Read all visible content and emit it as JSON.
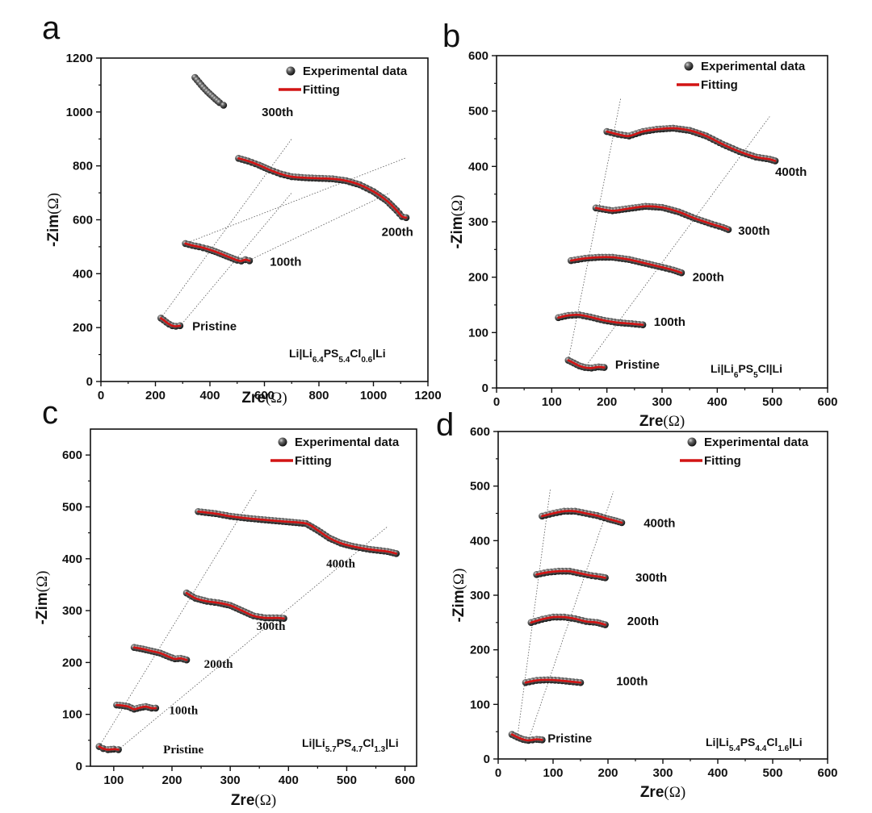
{
  "chart_data": [
    {
      "panel": "a",
      "type": "scatter",
      "xlabel": "Zre",
      "ylabel": "-Zim",
      "unit": "(Ω)",
      "xlim": [
        0,
        1200
      ],
      "ylim": [
        0,
        1200
      ],
      "xticks": [
        0,
        200,
        400,
        600,
        800,
        1000,
        1200
      ],
      "yticks": [
        0,
        200,
        400,
        600,
        800,
        1000,
        1200
      ],
      "legend": {
        "experimental": "Experimental data",
        "fitting": "Fitting",
        "position": "top-right"
      },
      "cell": {
        "prefix": "Li|Li",
        "s1": "6.4",
        "mid1": "PS",
        "s2": "5.4",
        "mid2": "Cl",
        "s3": "0.6",
        "suffix": "|Li"
      },
      "series": [
        {
          "name": "Pristine",
          "fit": true,
          "points": [
            [
              220,
              235
            ],
            [
              230,
              228
            ],
            [
              240,
              220
            ],
            [
              250,
              213
            ],
            [
              262,
              207
            ],
            [
              275,
              205
            ],
            [
              290,
              207
            ]
          ]
        },
        {
          "name": "100th",
          "fit": true,
          "points": [
            [
              310,
              512
            ],
            [
              335,
              505
            ],
            [
              360,
              500
            ],
            [
              390,
              492
            ],
            [
              420,
              482
            ],
            [
              450,
              470
            ],
            [
              480,
              458
            ],
            [
              500,
              450
            ],
            [
              515,
              447
            ],
            [
              530,
              452
            ],
            [
              545,
              448
            ]
          ]
        },
        {
          "name": "200th",
          "fit": true,
          "points": [
            [
              505,
              828
            ],
            [
              540,
              818
            ],
            [
              580,
              803
            ],
            [
              620,
              785
            ],
            [
              660,
              770
            ],
            [
              700,
              760
            ],
            [
              750,
              756
            ],
            [
              800,
              754
            ],
            [
              850,
              752
            ],
            [
              900,
              745
            ],
            [
              950,
              730
            ],
            [
              1000,
              705
            ],
            [
              1050,
              670
            ],
            [
              1085,
              635
            ],
            [
              1105,
              612
            ],
            [
              1120,
              608
            ]
          ]
        },
        {
          "name": "300th",
          "fit": false,
          "points": [
            [
              345,
              1128
            ],
            [
              360,
              1110
            ],
            [
              375,
              1092
            ],
            [
              390,
              1076
            ],
            [
              405,
              1062
            ],
            [
              420,
              1048
            ],
            [
              435,
              1035
            ],
            [
              450,
              1025
            ]
          ]
        }
      ],
      "label_anchor": {
        "Pristine": [
          335,
          190
        ],
        "100th": [
          620,
          430
        ],
        "200th": [
          1030,
          540
        ],
        "300th": [
          590,
          985
        ]
      },
      "guides": [
        [
          [
            220,
            235
          ],
          [
            700,
            900
          ]
        ],
        [
          [
            290,
            205
          ],
          [
            700,
            700
          ]
        ],
        [
          [
            310,
            512
          ],
          [
            1120,
            830
          ]
        ],
        [
          [
            545,
            450
          ],
          [
            1060,
            700
          ]
        ]
      ]
    },
    {
      "panel": "b",
      "type": "scatter",
      "xlabel": "Zre",
      "ylabel": "-Zim",
      "unit": "(Ω)",
      "xlim": [
        0,
        600
      ],
      "ylim": [
        0,
        600
      ],
      "xticks": [
        0,
        100,
        200,
        300,
        400,
        500,
        600
      ],
      "yticks": [
        0,
        100,
        200,
        300,
        400,
        500,
        600
      ],
      "legend": {
        "experimental": "Experimental data",
        "fitting": "Fitting",
        "position": "top-right"
      },
      "cell": {
        "prefix": "Li|Li",
        "s1": "6",
        "mid1": "PS",
        "s2": "5",
        "mid2": "Cl",
        "s3": "",
        "suffix": "|Li"
      },
      "series": [
        {
          "name": "Pristine",
          "fit": true,
          "points": [
            [
              130,
              50
            ],
            [
              140,
              45
            ],
            [
              150,
              40
            ],
            [
              160,
              37
            ],
            [
              172,
              36
            ],
            [
              185,
              38
            ],
            [
              195,
              37
            ]
          ]
        },
        {
          "name": "100th",
          "fit": true,
          "points": [
            [
              112,
              127
            ],
            [
              130,
              131
            ],
            [
              150,
              132
            ],
            [
              170,
              128
            ],
            [
              195,
              122
            ],
            [
              220,
              118
            ],
            [
              245,
              116
            ],
            [
              265,
              114
            ]
          ]
        },
        {
          "name": "200th",
          "fit": true,
          "points": [
            [
              135,
              230
            ],
            [
              160,
              234
            ],
            [
              185,
              236
            ],
            [
              210,
              236
            ],
            [
              240,
              232
            ],
            [
              270,
              225
            ],
            [
              300,
              218
            ],
            [
              320,
              213
            ],
            [
              335,
              208
            ]
          ]
        },
        {
          "name": "300th",
          "fit": true,
          "points": [
            [
              180,
              325
            ],
            [
              210,
              320
            ],
            [
              240,
              324
            ],
            [
              270,
              328
            ],
            [
              300,
              326
            ],
            [
              330,
              318
            ],
            [
              360,
              306
            ],
            [
              390,
              296
            ],
            [
              410,
              290
            ],
            [
              420,
              286
            ]
          ]
        },
        {
          "name": "400th",
          "fit": true,
          "points": [
            [
              200,
              463
            ],
            [
              220,
              458
            ],
            [
              240,
              455
            ],
            [
              265,
              463
            ],
            [
              290,
              467
            ],
            [
              320,
              469
            ],
            [
              350,
              465
            ],
            [
              380,
              455
            ],
            [
              410,
              440
            ],
            [
              440,
              427
            ],
            [
              470,
              417
            ],
            [
              495,
              413
            ],
            [
              505,
              410
            ]
          ]
        }
      ],
      "label_anchor": {
        "Pristine": [
          215,
          35
        ],
        "100th": [
          285,
          112
        ],
        "200th": [
          355,
          193
        ],
        "300th": [
          438,
          277
        ],
        "400th": [
          505,
          383
        ]
      },
      "guides": [
        [
          [
            130,
            50
          ],
          [
            225,
            523
          ]
        ],
        [
          [
            160,
            37
          ],
          [
            495,
            490
          ]
        ]
      ]
    },
    {
      "panel": "c",
      "type": "scatter",
      "xlabel": "Zre",
      "ylabel": "-Zim",
      "unit": "(Ω)",
      "xlim": [
        60,
        620
      ],
      "ylim": [
        0,
        650
      ],
      "xticks": [
        100,
        200,
        300,
        400,
        500,
        600
      ],
      "yticks": [
        0,
        100,
        200,
        300,
        400,
        500,
        600
      ],
      "legend": {
        "experimental": "Experimental data",
        "fitting": "Fitting",
        "position": "top-right"
      },
      "cell": {
        "prefix": "Li|Li",
        "s1": "5.7",
        "mid1": "PS",
        "s2": "4.7",
        "mid2": "Cl",
        "s3": "1.3",
        "suffix": "|Li"
      },
      "series": [
        {
          "name": "Pristine",
          "fit": true,
          "points": [
            [
              75,
              38
            ],
            [
              82,
              34
            ],
            [
              90,
              32
            ],
            [
              100,
              33
            ],
            [
              108,
              32
            ]
          ]
        },
        {
          "name": "100th",
          "fit": true,
          "points": [
            [
              105,
              118
            ],
            [
              115,
              117
            ],
            [
              125,
              115
            ],
            [
              135,
              110
            ],
            [
              145,
              113
            ],
            [
              155,
              115
            ],
            [
              165,
              112
            ],
            [
              172,
              112
            ]
          ]
        },
        {
          "name": "200th",
          "fit": true,
          "points": [
            [
              135,
              229
            ],
            [
              150,
              226
            ],
            [
              165,
              222
            ],
            [
              180,
              218
            ],
            [
              195,
              211
            ],
            [
              205,
              207
            ],
            [
              215,
              208
            ],
            [
              225,
              205
            ]
          ]
        },
        {
          "name": "300th",
          "fit": true,
          "points": [
            [
              225,
              334
            ],
            [
              240,
              324
            ],
            [
              260,
              318
            ],
            [
              280,
              315
            ],
            [
              300,
              310
            ],
            [
              320,
              300
            ],
            [
              340,
              290
            ],
            [
              360,
              286
            ],
            [
              380,
              286
            ],
            [
              392,
              285
            ]
          ]
        },
        {
          "name": "400th",
          "fit": true,
          "points": [
            [
              245,
              491
            ],
            [
              275,
              487
            ],
            [
              300,
              482
            ],
            [
              330,
              478
            ],
            [
              360,
              475
            ],
            [
              390,
              472
            ],
            [
              430,
              468
            ],
            [
              450,
              455
            ],
            [
              470,
              440
            ],
            [
              490,
              430
            ],
            [
              510,
              424
            ],
            [
              540,
              418
            ],
            [
              570,
              414
            ],
            [
              585,
              410
            ]
          ]
        }
      ],
      "label_anchor": {
        "Pristine": [
          185,
          25
        ],
        "100th": [
          195,
          100
        ],
        "200th": [
          255,
          190
        ],
        "300th": [
          345,
          263
        ],
        "400th": [
          465,
          383
        ]
      },
      "guides": [
        [
          [
            75,
            38
          ],
          [
            345,
            533
          ]
        ],
        [
          [
            108,
            32
          ],
          [
            570,
            462
          ]
        ]
      ]
    },
    {
      "panel": "d",
      "type": "scatter",
      "xlabel": "Zre",
      "ylabel": "-Zim",
      "unit": "(Ω)",
      "xlim": [
        0,
        600
      ],
      "ylim": [
        0,
        600
      ],
      "xticks": [
        0,
        100,
        200,
        300,
        400,
        500,
        600
      ],
      "yticks": [
        0,
        100,
        200,
        300,
        400,
        500,
        600
      ],
      "legend": {
        "experimental": "Experimental data",
        "fitting": "Fitting",
        "position": "top-right"
      },
      "cell": {
        "prefix": "Li|Li",
        "s1": "5.4",
        "mid1": "PS",
        "s2": "4.4",
        "mid2": "Cl",
        "s3": "1.6",
        "suffix": "|Li"
      },
      "series": [
        {
          "name": "Pristine",
          "fit": true,
          "points": [
            [
              25,
              45
            ],
            [
              35,
              40
            ],
            [
              45,
              36
            ],
            [
              55,
              34
            ],
            [
              70,
              36
            ],
            [
              80,
              35
            ]
          ]
        },
        {
          "name": "100th",
          "fit": true,
          "points": [
            [
              50,
              140
            ],
            [
              70,
              144
            ],
            [
              90,
              145
            ],
            [
              110,
              144
            ],
            [
              130,
              142
            ],
            [
              150,
              140
            ]
          ]
        },
        {
          "name": "200th",
          "fit": true,
          "points": [
            [
              60,
              250
            ],
            [
              80,
              256
            ],
            [
              100,
              260
            ],
            [
              120,
              260
            ],
            [
              140,
              257
            ],
            [
              160,
              252
            ],
            [
              180,
              250
            ],
            [
              195,
              246
            ]
          ]
        },
        {
          "name": "300th",
          "fit": true,
          "points": [
            [
              70,
              338
            ],
            [
              90,
              342
            ],
            [
              110,
              344
            ],
            [
              130,
              344
            ],
            [
              150,
              340
            ],
            [
              170,
              336
            ],
            [
              185,
              334
            ],
            [
              195,
              332
            ]
          ]
        },
        {
          "name": "400th",
          "fit": true,
          "points": [
            [
              80,
              445
            ],
            [
              100,
              450
            ],
            [
              120,
              454
            ],
            [
              140,
              454
            ],
            [
              160,
              450
            ],
            [
              180,
              446
            ],
            [
              200,
              440
            ],
            [
              215,
              436
            ],
            [
              225,
              433
            ]
          ]
        }
      ],
      "label_anchor": {
        "Pristine": [
          90,
          30
        ],
        "100th": [
          215,
          135
        ],
        "200th": [
          235,
          245
        ],
        "300th": [
          250,
          325
        ],
        "400th": [
          265,
          425
        ]
      },
      "guides": [
        [
          [
            35,
            40
          ],
          [
            95,
            495
          ]
        ],
        [
          [
            55,
            34
          ],
          [
            210,
            490
          ]
        ]
      ]
    }
  ]
}
